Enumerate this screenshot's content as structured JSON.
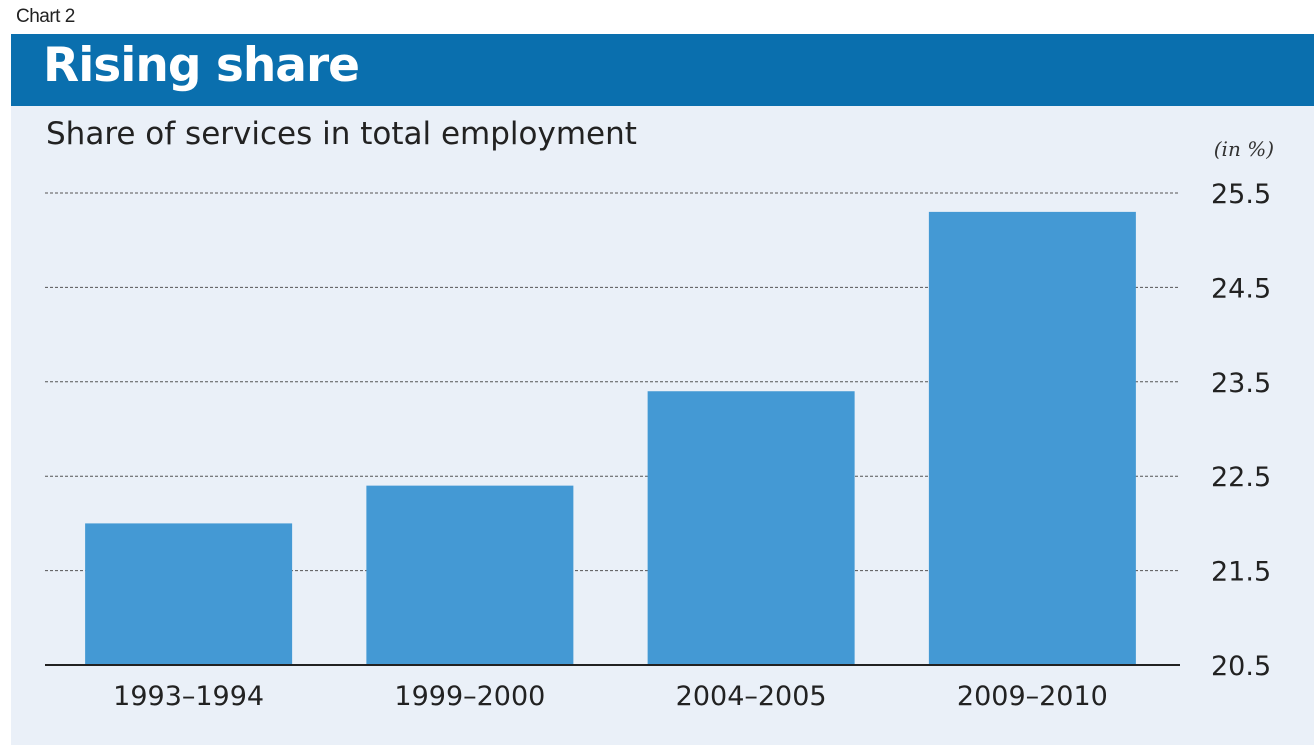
{
  "chart_label": "Chart 2",
  "chart_data": {
    "type": "bar",
    "title": "Rising share",
    "subtitle": "Share of services in total employment",
    "unit": "(in %)",
    "categories": [
      "1993–1994",
      "1999–2000",
      "2004–2005",
      "2009–2010"
    ],
    "values": [
      22.0,
      22.4,
      23.4,
      25.3
    ],
    "ylim": [
      20.5,
      25.5
    ],
    "yticks": [
      25.5,
      24.5,
      23.5,
      22.5,
      21.5,
      20.5
    ],
    "ytick_labels": [
      "25.5",
      "24.5",
      "23.5",
      "22.5",
      "21.5",
      "20.5"
    ],
    "grid": true,
    "bar_color": "#4499d4",
    "title_bar_color": "#0a6fae",
    "background_color": "#eaf0f8"
  }
}
